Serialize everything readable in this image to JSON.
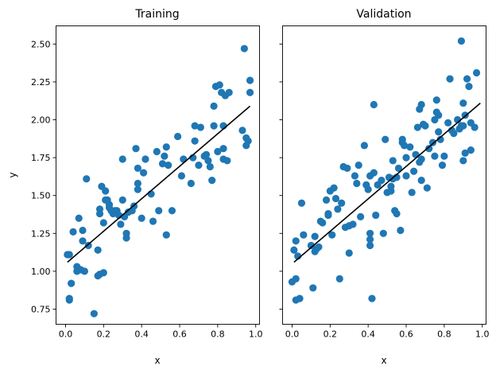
{
  "colors": {
    "points": "#1f77b4",
    "fit_line": "#000000",
    "axes": "#000000"
  },
  "chart_data": [
    {
      "type": "scatter",
      "title": "Training",
      "xlabel": "x",
      "ylabel": "y",
      "xlim": [
        -0.05,
        1.02
      ],
      "ylim": [
        0.65,
        2.62
      ],
      "x_ticks": [
        0.0,
        0.2,
        0.4,
        0.6,
        0.8,
        1.0
      ],
      "x_tick_labels": [
        "0.0",
        "0.2",
        "0.4",
        "0.6",
        "0.8",
        "1.0"
      ],
      "y_ticks": [
        0.75,
        1.0,
        1.25,
        1.5,
        1.75,
        2.0,
        2.25,
        2.5
      ],
      "y_tick_labels": [
        "0.75",
        "1.00",
        "1.25",
        "1.50",
        "1.75",
        "2.00",
        "2.25",
        "2.50"
      ],
      "grid": false,
      "fit_line": {
        "x": [
          0.01,
          0.97
        ],
        "y": [
          1.06,
          2.09
        ]
      },
      "points": [
        [
          0.01,
          1.11
        ],
        [
          0.02,
          1.11
        ],
        [
          0.02,
          0.82
        ],
        [
          0.02,
          0.81
        ],
        [
          0.03,
          0.92
        ],
        [
          0.04,
          1.26
        ],
        [
          0.06,
          1.0
        ],
        [
          0.06,
          1.03
        ],
        [
          0.07,
          1.35
        ],
        [
          0.08,
          1.01
        ],
        [
          0.09,
          1.2
        ],
        [
          0.09,
          1.27
        ],
        [
          0.1,
          1.0
        ],
        [
          0.11,
          1.61
        ],
        [
          0.12,
          1.17
        ],
        [
          0.15,
          0.72
        ],
        [
          0.17,
          1.14
        ],
        [
          0.17,
          0.97
        ],
        [
          0.18,
          0.98
        ],
        [
          0.18,
          1.41
        ],
        [
          0.18,
          1.38
        ],
        [
          0.19,
          1.56
        ],
        [
          0.2,
          1.32
        ],
        [
          0.2,
          0.99
        ],
        [
          0.21,
          1.53
        ],
        [
          0.21,
          1.47
        ],
        [
          0.22,
          1.47
        ],
        [
          0.23,
          1.42
        ],
        [
          0.23,
          1.44
        ],
        [
          0.24,
          1.4
        ],
        [
          0.25,
          1.38
        ],
        [
          0.26,
          1.4
        ],
        [
          0.27,
          1.4
        ],
        [
          0.28,
          1.37
        ],
        [
          0.29,
          1.31
        ],
        [
          0.3,
          1.74
        ],
        [
          0.3,
          1.47
        ],
        [
          0.31,
          1.36
        ],
        [
          0.32,
          1.22
        ],
        [
          0.32,
          1.25
        ],
        [
          0.33,
          1.39
        ],
        [
          0.35,
          1.4
        ],
        [
          0.36,
          1.43
        ],
        [
          0.37,
          1.81
        ],
        [
          0.38,
          1.54
        ],
        [
          0.38,
          1.58
        ],
        [
          0.38,
          1.68
        ],
        [
          0.4,
          1.35
        ],
        [
          0.41,
          1.65
        ],
        [
          0.42,
          1.74
        ],
        [
          0.45,
          1.51
        ],
        [
          0.46,
          1.33
        ],
        [
          0.48,
          1.79
        ],
        [
          0.49,
          1.4
        ],
        [
          0.51,
          1.71
        ],
        [
          0.52,
          1.76
        ],
        [
          0.53,
          1.24
        ],
        [
          0.53,
          1.82
        ],
        [
          0.54,
          1.7
        ],
        [
          0.56,
          1.4
        ],
        [
          0.59,
          1.89
        ],
        [
          0.61,
          1.63
        ],
        [
          0.62,
          1.74
        ],
        [
          0.66,
          1.58
        ],
        [
          0.67,
          1.75
        ],
        [
          0.68,
          1.86
        ],
        [
          0.68,
          1.96
        ],
        [
          0.7,
          1.7
        ],
        [
          0.71,
          1.95
        ],
        [
          0.73,
          1.76
        ],
        [
          0.74,
          1.77
        ],
        [
          0.75,
          1.73
        ],
        [
          0.76,
          1.69
        ],
        [
          0.77,
          1.6
        ],
        [
          0.78,
          1.96
        ],
        [
          0.78,
          2.09
        ],
        [
          0.79,
          2.22
        ],
        [
          0.8,
          1.79
        ],
        [
          0.81,
          2.23
        ],
        [
          0.82,
          2.18
        ],
        [
          0.83,
          1.74
        ],
        [
          0.83,
          1.96
        ],
        [
          0.83,
          1.81
        ],
        [
          0.84,
          2.16
        ],
        [
          0.85,
          1.73
        ],
        [
          0.86,
          2.18
        ],
        [
          0.93,
          1.93
        ],
        [
          0.94,
          2.47
        ],
        [
          0.95,
          1.88
        ],
        [
          0.95,
          1.83
        ],
        [
          0.96,
          1.86
        ],
        [
          0.97,
          2.26
        ],
        [
          0.97,
          2.18
        ]
      ]
    },
    {
      "type": "scatter",
      "title": "Validation",
      "xlabel": "x",
      "ylabel": "",
      "xlim": [
        -0.05,
        1.02
      ],
      "ylim": [
        0.65,
        2.62
      ],
      "x_ticks": [
        0.0,
        0.2,
        0.4,
        0.6,
        0.8,
        1.0
      ],
      "x_tick_labels": [
        "0.0",
        "0.2",
        "0.4",
        "0.6",
        "0.8",
        "1.0"
      ],
      "y_ticks": [
        0.75,
        1.0,
        1.25,
        1.5,
        1.75,
        2.0,
        2.25,
        2.5
      ],
      "y_tick_labels": [],
      "grid": false,
      "fit_line": {
        "x": [
          0.01,
          0.99
        ],
        "y": [
          1.06,
          2.11
        ]
      },
      "points": [
        [
          0.0,
          0.93
        ],
        [
          0.01,
          1.14
        ],
        [
          0.02,
          1.2
        ],
        [
          0.02,
          0.81
        ],
        [
          0.02,
          0.95
        ],
        [
          0.03,
          1.1
        ],
        [
          0.04,
          0.82
        ],
        [
          0.05,
          1.45
        ],
        [
          0.06,
          1.24
        ],
        [
          0.1,
          1.17
        ],
        [
          0.11,
          0.89
        ],
        [
          0.12,
          1.23
        ],
        [
          0.12,
          1.13
        ],
        [
          0.13,
          1.15
        ],
        [
          0.14,
          1.16
        ],
        [
          0.15,
          1.33
        ],
        [
          0.16,
          1.32
        ],
        [
          0.18,
          1.47
        ],
        [
          0.19,
          1.37
        ],
        [
          0.19,
          1.38
        ],
        [
          0.2,
          1.53
        ],
        [
          0.21,
          1.24
        ],
        [
          0.22,
          1.55
        ],
        [
          0.23,
          1.48
        ],
        [
          0.24,
          1.41
        ],
        [
          0.25,
          0.95
        ],
        [
          0.26,
          1.45
        ],
        [
          0.27,
          1.69
        ],
        [
          0.28,
          1.29
        ],
        [
          0.29,
          1.68
        ],
        [
          0.3,
          1.12
        ],
        [
          0.3,
          1.3
        ],
        [
          0.32,
          1.31
        ],
        [
          0.33,
          1.63
        ],
        [
          0.34,
          1.58
        ],
        [
          0.35,
          1.7
        ],
        [
          0.36,
          1.36
        ],
        [
          0.38,
          1.83
        ],
        [
          0.39,
          1.57
        ],
        [
          0.4,
          1.54
        ],
        [
          0.41,
          1.63
        ],
        [
          0.41,
          1.21
        ],
        [
          0.41,
          1.17
        ],
        [
          0.41,
          1.25
        ],
        [
          0.42,
          0.82
        ],
        [
          0.43,
          2.1
        ],
        [
          0.43,
          1.65
        ],
        [
          0.44,
          1.37
        ],
        [
          0.45,
          1.57
        ],
        [
          0.47,
          1.6
        ],
        [
          0.48,
          1.25
        ],
        [
          0.49,
          1.87
        ],
        [
          0.5,
          1.52
        ],
        [
          0.51,
          1.62
        ],
        [
          0.52,
          1.53
        ],
        [
          0.52,
          1.56
        ],
        [
          0.53,
          1.61
        ],
        [
          0.53,
          1.73
        ],
        [
          0.54,
          1.4
        ],
        [
          0.55,
          1.62
        ],
        [
          0.55,
          1.38
        ],
        [
          0.56,
          1.68
        ],
        [
          0.57,
          1.27
        ],
        [
          0.58,
          1.85
        ],
        [
          0.58,
          1.87
        ],
        [
          0.59,
          1.83
        ],
        [
          0.6,
          1.63
        ],
        [
          0.6,
          1.75
        ],
        [
          0.62,
          1.82
        ],
        [
          0.63,
          1.52
        ],
        [
          0.64,
          1.66
        ],
        [
          0.65,
          1.77
        ],
        [
          0.66,
          1.95
        ],
        [
          0.67,
          1.72
        ],
        [
          0.67,
          2.07
        ],
        [
          0.68,
          2.1
        ],
        [
          0.68,
          1.6
        ],
        [
          0.68,
          1.74
        ],
        [
          0.69,
          1.97
        ],
        [
          0.7,
          1.96
        ],
        [
          0.71,
          1.55
        ],
        [
          0.72,
          1.81
        ],
        [
          0.74,
          1.85
        ],
        [
          0.75,
          2.0
        ],
        [
          0.75,
          1.76
        ],
        [
          0.76,
          2.05
        ],
        [
          0.76,
          2.13
        ],
        [
          0.77,
          1.92
        ],
        [
          0.77,
          2.03
        ],
        [
          0.78,
          1.87
        ],
        [
          0.79,
          1.7
        ],
        [
          0.8,
          1.76
        ],
        [
          0.82,
          1.98
        ],
        [
          0.83,
          2.27
        ],
        [
          0.84,
          1.93
        ],
        [
          0.85,
          1.91
        ],
        [
          0.87,
          2.0
        ],
        [
          0.88,
          1.94
        ],
        [
          0.89,
          2.52
        ],
        [
          0.89,
          1.96
        ],
        [
          0.9,
          1.96
        ],
        [
          0.9,
          1.73
        ],
        [
          0.9,
          2.11
        ],
        [
          0.91,
          2.03
        ],
        [
          0.91,
          1.78
        ],
        [
          0.92,
          2.27
        ],
        [
          0.93,
          2.22
        ],
        [
          0.94,
          1.98
        ],
        [
          0.94,
          1.8
        ],
        [
          0.96,
          1.95
        ],
        [
          0.97,
          2.31
        ]
      ]
    }
  ]
}
